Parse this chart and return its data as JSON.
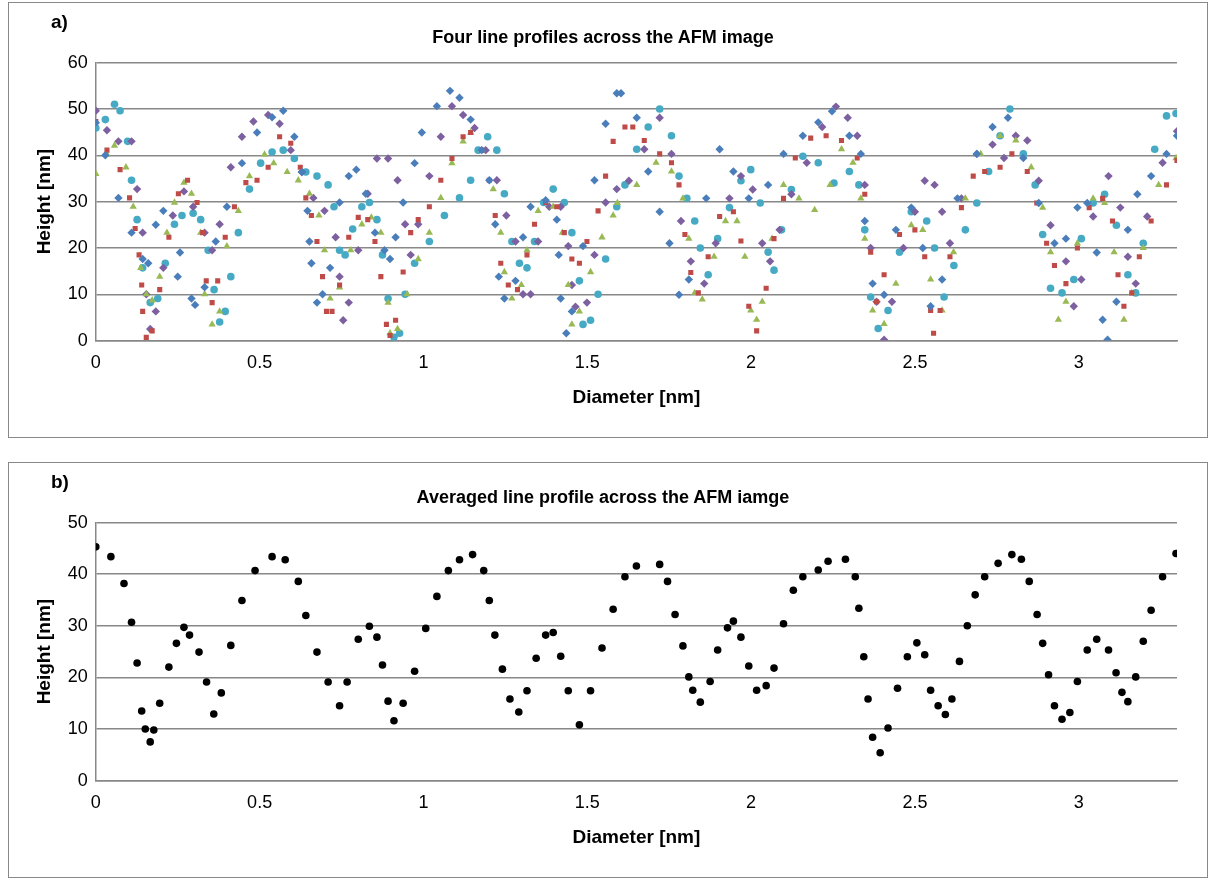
{
  "chart_data": [
    {
      "type": "scatter",
      "title": "Four line profiles across the AFM image",
      "xlabel": "Diameter [nm]",
      "ylabel": "Height [nm]",
      "annotations": [
        "a)"
      ],
      "xlim": [
        0,
        3.3
      ],
      "xticks": [
        0,
        0.5,
        1,
        1.5,
        2,
        2.5,
        3
      ],
      "ylim": [
        0,
        60
      ],
      "yticks": [
        0,
        10,
        20,
        30,
        40,
        50,
        60
      ],
      "grid": "y",
      "legend": false,
      "series": [
        {
          "color": "#4a7ebb",
          "marker": "diamond",
          "x": [
            0,
            0.029,
            0.069,
            0.109,
            0.143,
            0.16,
            0.183,
            0.206,
            0.25,
            0.257,
            0.292,
            0.303,
            0.332,
            0.366,
            0.4,
            0.446,
            0.492,
            0.538,
            0.572,
            0.606,
            0.629,
            0.646,
            0.652,
            0.658,
            0.675,
            0.692,
            0.715,
            0.744,
            0.772,
            0.795,
            0.824,
            0.852,
            0.881,
            0.898,
            0.915,
            0.938,
            0.973,
            0.995,
            1.041,
            1.081,
            1.11,
            1.144,
            1.178,
            1.201,
            1.219,
            1.23,
            1.247,
            1.281,
            1.304,
            1.327,
            1.373,
            1.407,
            1.413,
            1.419,
            1.436,
            1.453,
            1.487,
            1.522,
            1.556,
            1.59,
            1.603,
            1.651,
            1.686,
            1.721,
            1.751,
            1.78,
            1.81,
            1.863,
            1.904,
            1.946,
            1.993,
            2.052,
            2.099,
            2.158,
            2.205,
            2.247,
            2.3,
            2.335,
            2.347,
            2.371,
            2.406,
            2.442,
            2.489,
            2.524,
            2.548,
            2.583,
            2.63,
            2.689,
            2.737,
            2.784,
            2.831,
            2.878,
            2.926,
            2.961,
            2.996,
            3.026,
            3.055,
            3.073,
            3.088,
            3.115,
            3.15,
            3.179,
            3.221,
            3.268,
            3.3
          ],
          "values": [
            47,
            40,
            30.8,
            23.3,
            17.6,
            16.7,
            25,
            28,
            13.8,
            19,
            9.1,
            7.7,
            11.5,
            21.4,
            28.9,
            38.3,
            44.9,
            48.2,
            49.6,
            44,
            36.4,
            28,
            21.4,
            16.7,
            8.2,
            10,
            15.7,
            29.8,
            35.5,
            36.9,
            31.7,
            23.3,
            19.5,
            17.6,
            22.3,
            29.8,
            38.3,
            44.9,
            50.6,
            53.9,
            52.4,
            47.7,
            41.1,
            34.6,
            25.1,
            13.8,
            9.1,
            12.9,
            22.3,
            28.9,
            30.3,
            26.1,
            18.5,
            9.1,
            1.6,
            6.3,
            20.4,
            34.6,
            46.8,
            53.4,
            53.4,
            48.1,
            36.5,
            27.8,
            21,
            9.9,
            13.2,
            30.7,
            41.3,
            36.5,
            30.7,
            33.6,
            40.3,
            44.2,
            47.1,
            49.5,
            44.2,
            40.3,
            25.8,
            12.3,
            9.9,
            23.9,
            28.7,
            20,
            7.4,
            13.2,
            30.7,
            40.3,
            46.1,
            48.1,
            39.4,
            29.7,
            21,
            22,
            28.7,
            29.7,
            19,
            4.5,
            0.2,
            8.4,
            23.9,
            31.6,
            35.5,
            40.3,
            44.2
          ]
        },
        {
          "color": "#be4b48",
          "marker": "square",
          "x": [
            0,
            0.034,
            0.074,
            0.103,
            0.12,
            0.132,
            0.14,
            0.143,
            0.154,
            0.172,
            0.195,
            0.223,
            0.252,
            0.28,
            0.309,
            0.326,
            0.337,
            0.355,
            0.372,
            0.395,
            0.423,
            0.458,
            0.492,
            0.526,
            0.561,
            0.595,
            0.624,
            0.641,
            0.658,
            0.675,
            0.692,
            0.704,
            0.721,
            0.744,
            0.772,
            0.801,
            0.83,
            0.852,
            0.87,
            0.887,
            0.898,
            0.915,
            0.938,
            0.961,
            0.984,
            1.018,
            1.053,
            1.087,
            1.121,
            1.144,
            1.178,
            1.201,
            1.219,
            1.236,
            1.259,
            1.287,
            1.316,
            1.339,
            1.373,
            1.407,
            1.43,
            1.453,
            1.476,
            1.499,
            1.533,
            1.556,
            1.579,
            1.615,
            1.639,
            1.674,
            1.721,
            1.757,
            1.78,
            1.798,
            1.816,
            1.839,
            1.869,
            1.904,
            1.946,
            1.969,
            1.993,
            2.017,
            2.046,
            2.07,
            2.099,
            2.135,
            2.182,
            2.229,
            2.276,
            2.324,
            2.347,
            2.365,
            2.383,
            2.406,
            2.453,
            2.5,
            2.53,
            2.548,
            2.557,
            2.577,
            2.607,
            2.642,
            2.678,
            2.713,
            2.76,
            2.796,
            2.843,
            2.872,
            2.902,
            2.926,
            2.961,
            2.996,
            3.032,
            3.073,
            3.103,
            3.12,
            3.138,
            3.162,
            3.185,
            3.221,
            3.268,
            3.3
          ],
          "values": [
            47.3,
            41.1,
            36.9,
            30.8,
            24.2,
            18.5,
            12,
            6.3,
            0.7,
            2.1,
            11,
            22.3,
            31.7,
            34.6,
            29.8,
            23.3,
            12.9,
            8.2,
            12.9,
            22.3,
            28.9,
            34.1,
            34.6,
            37.4,
            44,
            42.6,
            37.4,
            30.8,
            27,
            21.4,
            13.8,
            6.3,
            6.3,
            12,
            22.3,
            26.6,
            26.1,
            21.4,
            13.8,
            3.5,
            1.1,
            4.4,
            14.8,
            23.3,
            26.1,
            28.9,
            34.6,
            39.3,
            44,
            44.9,
            41.1,
            34.6,
            27,
            16.7,
            12,
            11,
            18.5,
            25.1,
            29.8,
            28.9,
            23.3,
            17.6,
            16.7,
            21.4,
            28,
            35.5,
            43,
            46.1,
            46.1,
            43.2,
            40.3,
            38.4,
            33.6,
            22.9,
            14.7,
            10.3,
            18.1,
            26.8,
            27.8,
            21.5,
            7.4,
            2.1,
            11.3,
            22,
            30.7,
            39.4,
            43.7,
            44.2,
            43.2,
            39.4,
            31.6,
            19.1,
            8.4,
            14.2,
            22.9,
            23.9,
            18.1,
            6.5,
            1.6,
            6.5,
            18.1,
            28.7,
            35.5,
            36.5,
            37.4,
            40.3,
            36.5,
            29.7,
            21,
            16.2,
            12.3,
            20,
            28.7,
            30.7,
            25.8,
            14.2,
            7.4,
            10.3,
            18.1,
            25.8,
            33.6,
            38.9
          ]
        },
        {
          "color": "#98b954",
          "marker": "triangle",
          "x": [
            0,
            0.034,
            0.057,
            0.092,
            0.114,
            0.137,
            0.154,
            0.172,
            0.195,
            0.217,
            0.24,
            0.269,
            0.292,
            0.32,
            0.332,
            0.355,
            0.378,
            0.4,
            0.435,
            0.469,
            0.515,
            0.543,
            0.584,
            0.618,
            0.652,
            0.681,
            0.698,
            0.715,
            0.744,
            0.778,
            0.812,
            0.841,
            0.87,
            0.892,
            0.898,
            0.921,
            0.95,
            0.984,
            1.018,
            1.053,
            1.087,
            1.121,
            1.144,
            1.178,
            1.213,
            1.236,
            1.247,
            1.27,
            1.299,
            1.316,
            1.35,
            1.396,
            1.424,
            1.442,
            1.453,
            1.476,
            1.51,
            1.545,
            1.579,
            1.592,
            1.651,
            1.71,
            1.757,
            1.792,
            1.81,
            1.828,
            1.851,
            1.887,
            1.922,
            1.957,
            1.981,
            1.999,
            2.017,
            2.034,
            2.064,
            2.099,
            2.146,
            2.194,
            2.241,
            2.276,
            2.311,
            2.335,
            2.347,
            2.371,
            2.406,
            2.442,
            2.489,
            2.524,
            2.548,
            2.583,
            2.618,
            2.654,
            2.701,
            2.76,
            2.808,
            2.855,
            2.89,
            2.914,
            2.938,
            2.961,
            2.996,
            3.044,
            3.079,
            3.108,
            3.138,
            3.162,
            3.197,
            3.244,
            3.297
          ],
          "values": [
            36,
            40.2,
            42.1,
            37.4,
            28.9,
            15.7,
            10,
            8.7,
            13.8,
            23.3,
            29.8,
            34.1,
            31.7,
            23.3,
            10,
            3.5,
            6.3,
            20.4,
            28,
            35.5,
            40.2,
            38.3,
            36.4,
            34.6,
            31.7,
            27,
            19.5,
            9.1,
            11.5,
            19.5,
            25.1,
            26.6,
            23.3,
            8.2,
            1.6,
            2.5,
            10,
            17.6,
            23.3,
            30.8,
            38.3,
            43,
            44.9,
            41.1,
            32.7,
            23.3,
            14.8,
            9.1,
            12,
            19.5,
            28,
            28.9,
            23.3,
            12,
            3.5,
            6.3,
            14.8,
            22.3,
            27,
            29.7,
            33.6,
            38.4,
            36.5,
            30.7,
            22,
            10.3,
            8.9,
            18.1,
            25.8,
            25.8,
            18.1,
            6.5,
            4.5,
            8.4,
            22,
            33.6,
            30.7,
            28.2,
            33.6,
            41.3,
            38.4,
            30.7,
            22,
            6.5,
            3.6,
            12.3,
            24.9,
            23.9,
            13.2,
            6.5,
            19.1,
            30.7,
            40.3,
            44.2,
            43.2,
            37.4,
            28.7,
            19.1,
            4.5,
            8.4,
            21,
            30.7,
            29.7,
            19.1,
            4.5,
            10.3,
            20,
            33.6,
            39.4
          ]
        },
        {
          "color": "#7d60a0",
          "marker": "diamond",
          "x": [
            0,
            0.034,
            0.069,
            0.109,
            0.126,
            0.143,
            0.154,
            0.166,
            0.183,
            0.206,
            0.235,
            0.269,
            0.297,
            0.332,
            0.355,
            0.378,
            0.412,
            0.446,
            0.481,
            0.526,
            0.561,
            0.595,
            0.629,
            0.664,
            0.698,
            0.732,
            0.744,
            0.755,
            0.772,
            0.801,
            0.83,
            0.858,
            0.892,
            0.921,
            0.944,
            0.961,
            0.984,
            1.018,
            1.053,
            1.087,
            1.121,
            1.156,
            1.19,
            1.224,
            1.253,
            1.281,
            1.304,
            1.327,
            1.35,
            1.384,
            1.419,
            1.442,
            1.453,
            1.464,
            1.499,
            1.522,
            1.556,
            1.59,
            1.627,
            1.674,
            1.721,
            1.757,
            1.786,
            1.816,
            1.857,
            1.892,
            1.934,
            1.969,
            2.005,
            2.034,
            2.058,
            2.087,
            2.123,
            2.17,
            2.217,
            2.259,
            2.295,
            2.324,
            2.347,
            2.365,
            2.383,
            2.406,
            2.43,
            2.465,
            2.5,
            2.53,
            2.56,
            2.583,
            2.607,
            2.642,
            2.689,
            2.737,
            2.772,
            2.808,
            2.843,
            2.878,
            2.914,
            2.961,
            2.985,
            3.008,
            3.044,
            3.091,
            3.127,
            3.15,
            3.174,
            3.209,
            3.256,
            3.3
          ],
          "values": [
            49.6,
            45.4,
            43,
            43,
            32.7,
            23.3,
            10,
            2.5,
            6.3,
            15.7,
            27,
            32.2,
            28.9,
            23.3,
            19.5,
            25.1,
            37.4,
            44,
            47.3,
            48.7,
            46.8,
            41.1,
            36.4,
            30.8,
            28,
            22.3,
            13.8,
            4.4,
            8.2,
            19.5,
            31.7,
            39.3,
            39.3,
            34.6,
            25.1,
            18.5,
            25.1,
            35.5,
            44,
            50.6,
            48.7,
            45.9,
            41.1,
            34.6,
            27,
            21.4,
            10,
            10,
            21.4,
            28.9,
            28.9,
            20.4,
            12,
            7.3,
            8.2,
            18.5,
            29.8,
            32.7,
            34.5,
            41.3,
            48.1,
            40.3,
            25.8,
            17.1,
            12.3,
            21,
            30.7,
            35.5,
            32.6,
            21,
            17.1,
            23.9,
            31.6,
            38.4,
            46.1,
            50.5,
            48.1,
            44.2,
            33.6,
            20,
            8.4,
            0.2,
            8.4,
            20,
            27.8,
            34.5,
            33.6,
            27.8,
            21,
            30.7,
            40.3,
            42.3,
            39.4,
            44.2,
            43.2,
            34.5,
            24.9,
            17.1,
            7.4,
            13.2,
            26.8,
            35.5,
            28.7,
            18.1,
            12.3,
            26.8,
            38.4,
            45.2
          ]
        },
        {
          "color": "#46aac5",
          "marker": "circle",
          "x": [
            0,
            0.029,
            0.057,
            0.074,
            0.097,
            0.109,
            0.126,
            0.143,
            0.166,
            0.189,
            0.212,
            0.24,
            0.263,
            0.297,
            0.32,
            0.343,
            0.361,
            0.378,
            0.395,
            0.412,
            0.435,
            0.469,
            0.503,
            0.538,
            0.572,
            0.606,
            0.641,
            0.675,
            0.709,
            0.727,
            0.744,
            0.761,
            0.784,
            0.812,
            0.835,
            0.858,
            0.875,
            0.892,
            0.91,
            0.927,
            0.944,
            0.973,
            1.018,
            1.064,
            1.11,
            1.144,
            1.167,
            1.196,
            1.224,
            1.247,
            1.27,
            1.293,
            1.316,
            1.339,
            1.367,
            1.396,
            1.43,
            1.453,
            1.476,
            1.487,
            1.51,
            1.533,
            1.556,
            1.59,
            1.615,
            1.651,
            1.686,
            1.721,
            1.757,
            1.78,
            1.804,
            1.828,
            1.845,
            1.869,
            1.898,
            1.934,
            1.969,
            1.999,
            2.028,
            2.052,
            2.07,
            2.093,
            2.123,
            2.158,
            2.205,
            2.253,
            2.3,
            2.329,
            2.347,
            2.365,
            2.388,
            2.418,
            2.453,
            2.489,
            2.536,
            2.56,
            2.589,
            2.619,
            2.654,
            2.689,
            2.725,
            2.76,
            2.79,
            2.831,
            2.867,
            2.89,
            2.914,
            2.949,
            2.985,
            3.008,
            3.044,
            3.079,
            3.115,
            3.15,
            3.174,
            3.197,
            3.232,
            3.268,
            3.297
          ],
          "values": [
            45.9,
            47.7,
            51,
            49.6,
            43,
            34.6,
            26.1,
            15.7,
            8.2,
            9.1,
            16.7,
            25.1,
            27,
            27.5,
            26.1,
            19.5,
            11,
            4,
            6.3,
            13.8,
            23.3,
            32.7,
            38.3,
            40.7,
            41.1,
            39.3,
            36.4,
            35.5,
            33.6,
            28.9,
            19.5,
            18.5,
            24.1,
            28.9,
            29.8,
            26.1,
            18.5,
            9.1,
            0.7,
            1.6,
            10,
            16.7,
            21.4,
            27,
            30.8,
            34.6,
            41.1,
            44,
            41.1,
            31.7,
            21.4,
            16.7,
            15.7,
            21.4,
            29.8,
            32.7,
            29.8,
            23.3,
            12.9,
            3.5,
            4.4,
            10,
            17.6,
            28.9,
            33.6,
            41.3,
            46.1,
            50,
            44.2,
            35.5,
            30.7,
            25.8,
            20,
            14.2,
            22,
            28.7,
            34.5,
            36.9,
            29.7,
            19.1,
            15.2,
            23.9,
            32.6,
            39.8,
            38.4,
            34,
            36.5,
            33.6,
            23.9,
            9.4,
            2.6,
            6.5,
            19.1,
            27.8,
            25.8,
            20,
            9.4,
            16.2,
            23.9,
            29.7,
            36.5,
            44.2,
            50,
            40.3,
            33.6,
            22.9,
            11.3,
            10.3,
            13.2,
            22,
            29.7,
            31.6,
            24.9,
            14.2,
            10.3,
            21,
            41.3,
            48.5,
            49
          ]
        }
      ]
    },
    {
      "type": "scatter",
      "title": "Averaged line profile across the AFM iamge",
      "xlabel": "Diameter [nm]",
      "ylabel": "Height [nm]",
      "annotations": [
        "b)"
      ],
      "xlim": [
        0,
        3.3
      ],
      "xticks": [
        0,
        0.5,
        1,
        1.5,
        2,
        2.5,
        3
      ],
      "ylim": [
        0,
        50
      ],
      "yticks": [
        0,
        10,
        20,
        30,
        40,
        50
      ],
      "grid": "y",
      "legend": false,
      "marker": "circle",
      "series": [
        {
          "color": "#000000",
          "x": [
            0,
            0.046,
            0.086,
            0.109,
            0.126,
            0.14,
            0.151,
            0.166,
            0.177,
            0.195,
            0.223,
            0.246,
            0.269,
            0.286,
            0.315,
            0.338,
            0.36,
            0.383,
            0.412,
            0.446,
            0.486,
            0.538,
            0.578,
            0.618,
            0.641,
            0.675,
            0.709,
            0.744,
            0.767,
            0.801,
            0.835,
            0.858,
            0.875,
            0.892,
            0.91,
            0.938,
            0.973,
            1.007,
            1.041,
            1.076,
            1.11,
            1.15,
            1.184,
            1.201,
            1.218,
            1.241,
            1.264,
            1.291,
            1.316,
            1.344,
            1.373,
            1.396,
            1.419,
            1.442,
            1.476,
            1.51,
            1.545,
            1.579,
            1.615,
            1.65,
            1.721,
            1.745,
            1.768,
            1.792,
            1.81,
            1.822,
            1.845,
            1.875,
            1.898,
            1.928,
            1.946,
            1.969,
            1.993,
            2.017,
            2.046,
            2.07,
            2.099,
            2.129,
            2.158,
            2.205,
            2.235,
            2.288,
            2.318,
            2.329,
            2.344,
            2.357,
            2.371,
            2.394,
            2.418,
            2.447,
            2.477,
            2.506,
            2.53,
            2.548,
            2.571,
            2.593,
            2.613,
            2.636,
            2.66,
            2.684,
            2.713,
            2.754,
            2.796,
            2.825,
            2.849,
            2.873,
            2.89,
            2.908,
            2.926,
            2.949,
            2.973,
            2.996,
            3.026,
            3.055,
            3.091,
            3.114,
            3.132,
            3.15,
            3.174,
            3.197,
            3.221,
            3.256,
            3.297
          ],
          "values": [
            45.3,
            43.4,
            38.2,
            30.7,
            22.8,
            13.5,
            10,
            7.5,
            9.8,
            15,
            22,
            26.6,
            29.7,
            28.2,
            24.9,
            19.1,
            12.9,
            17,
            26.2,
            34.9,
            40.7,
            43.4,
            42.8,
            38.6,
            32,
            24.9,
            19.1,
            14.5,
            19.1,
            27.4,
            29.9,
            27.8,
            22.4,
            15.4,
            11.6,
            15,
            21.2,
            29.5,
            35.7,
            40.7,
            42.8,
            43.8,
            40.7,
            34.9,
            28.2,
            21.6,
            15.8,
            13.3,
            17.4,
            23.7,
            28.2,
            28.7,
            24.1,
            17.4,
            10.8,
            17.4,
            25.7,
            33.2,
            39.5,
            41.6,
            41.9,
            38.6,
            32.2,
            26.1,
            20.1,
            17.5,
            15.2,
            19.2,
            25.3,
            29.6,
            30.9,
            27.8,
            22.2,
            17.5,
            18.4,
            21.8,
            30.4,
            36.9,
            39.5,
            40.8,
            42.5,
            42.9,
            39.5,
            33.4,
            24,
            15.8,
            8.4,
            5.4,
            10.2,
            17.9,
            24,
            26.7,
            24.4,
            17.5,
            14.5,
            12.8,
            15.8,
            23.1,
            30,
            36,
            39.5,
            42.1,
            43.8,
            42.9,
            38.6,
            32.2,
            26.6,
            20.5,
            14.5,
            11.9,
            13.2,
            19.2,
            25.3,
            27.4,
            25.3,
            20.9,
            17.1,
            15.3,
            20.1,
            27,
            33,
            39.5,
            44
          ]
        }
      ]
    }
  ]
}
